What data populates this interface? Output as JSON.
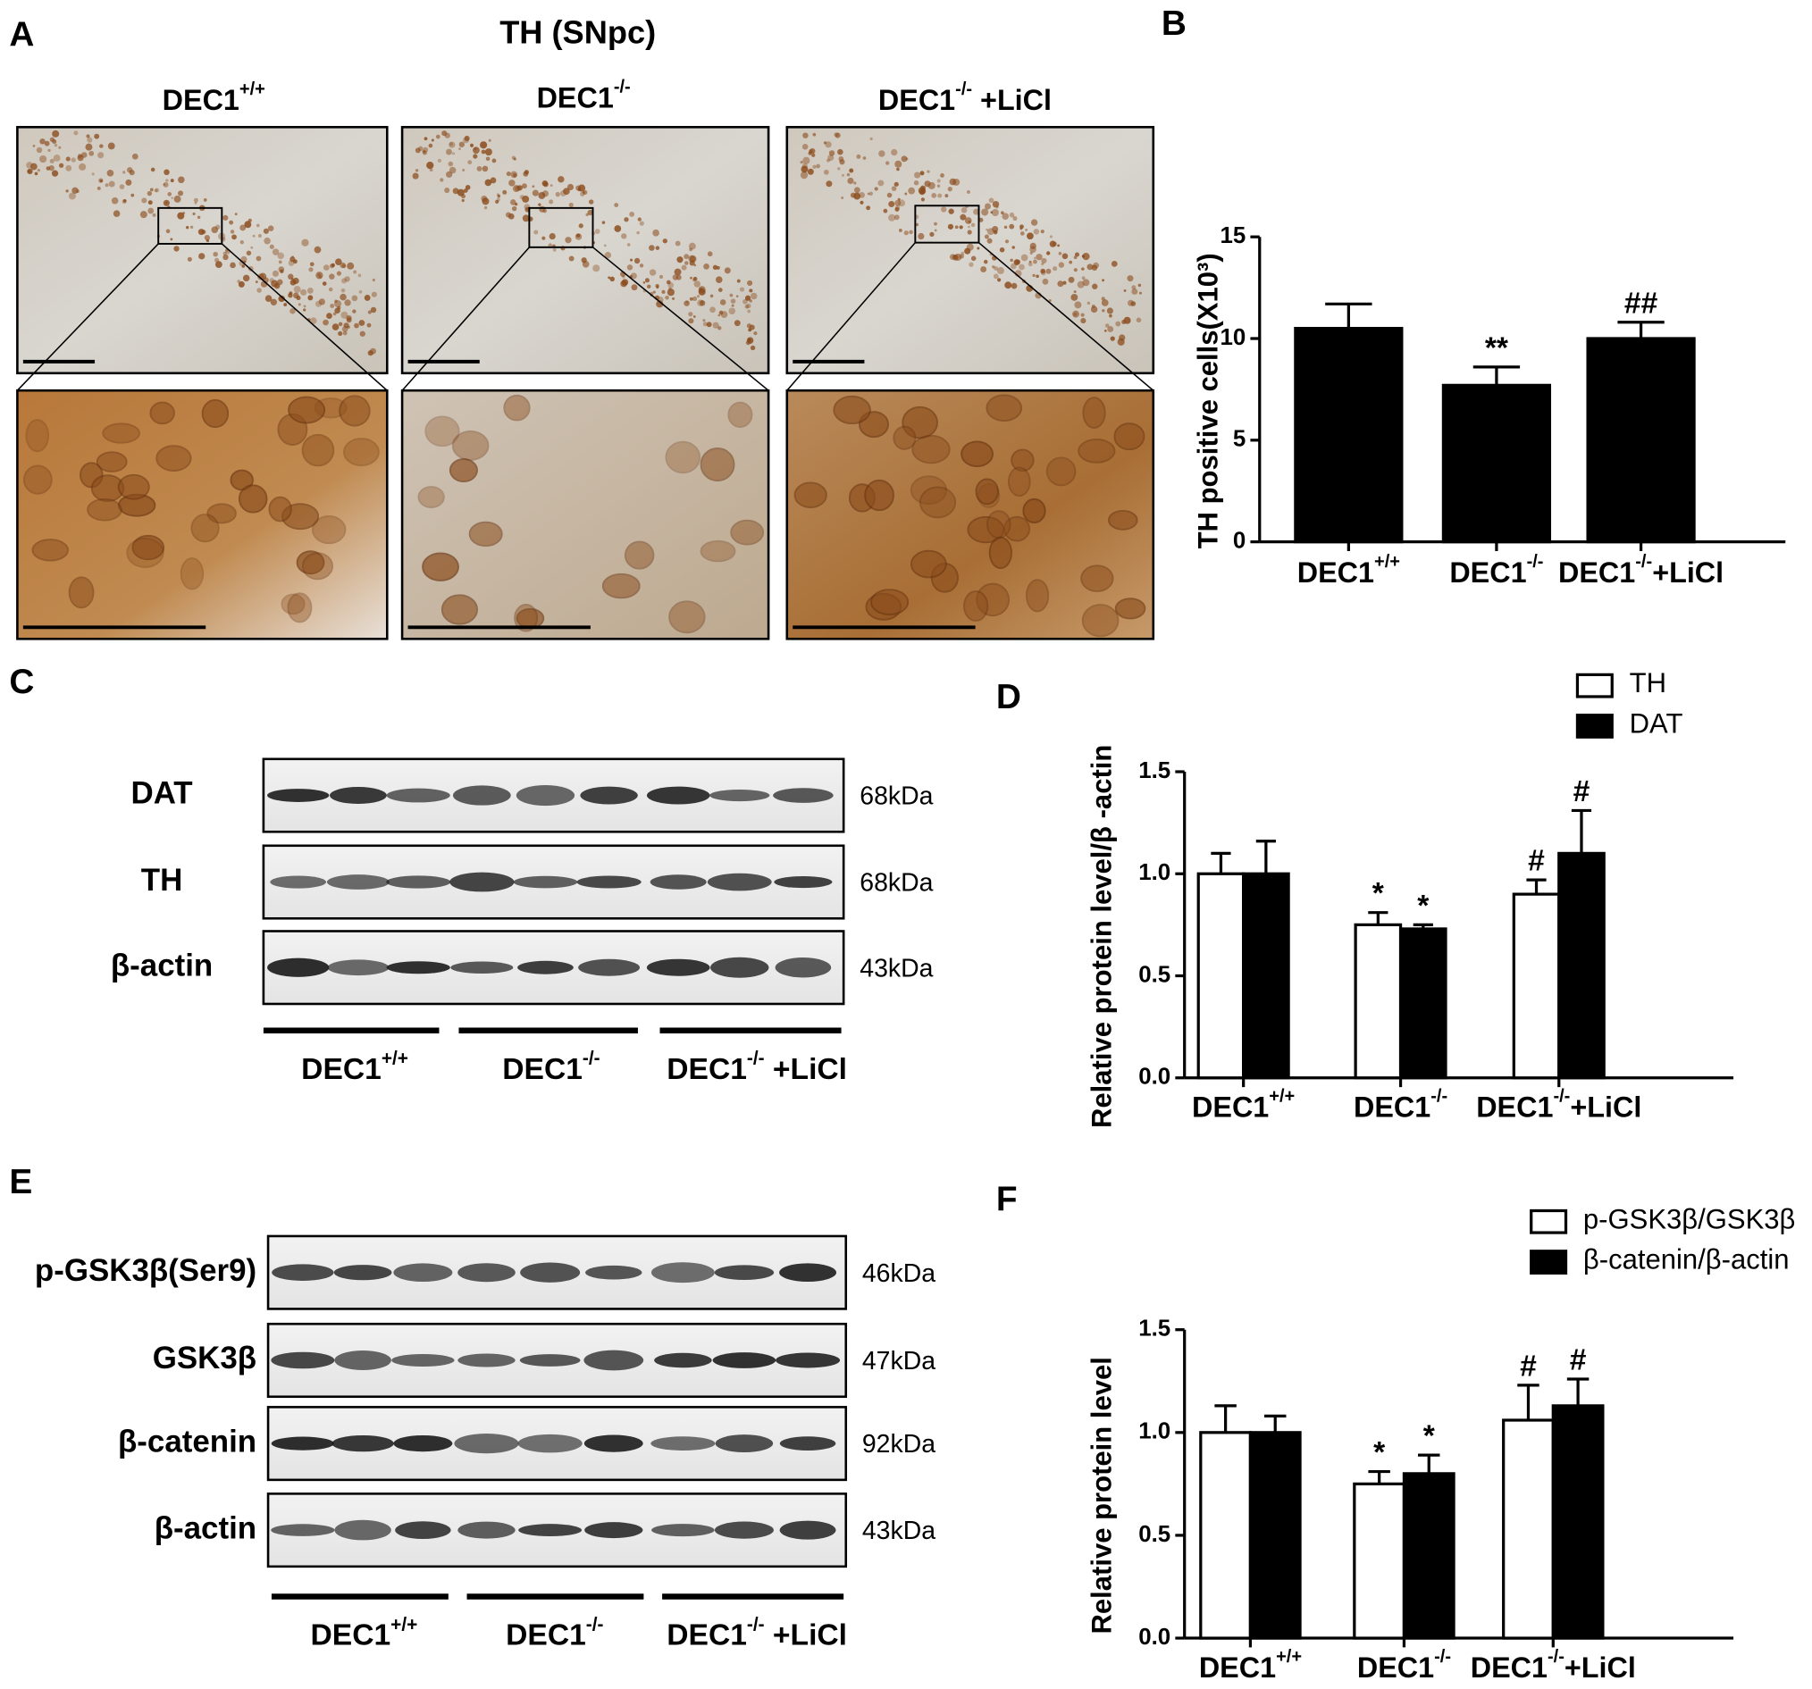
{
  "panel_a": {
    "letter": "A",
    "title": "TH (SNpc)",
    "groups": [
      "DEC1+/+",
      "DEC1-/-",
      "DEC1-/- +LiCl"
    ]
  },
  "panel_c": {
    "letter": "C",
    "rows": [
      {
        "label": "DAT",
        "size": "68kDa"
      },
      {
        "label": "TH",
        "size": "68kDa"
      },
      {
        "label": "β-actin",
        "size": "43kDa"
      }
    ],
    "groups": [
      "DEC1+/+",
      "DEC1-/-",
      "DEC1-/- +LiCl"
    ]
  },
  "panel_e": {
    "letter": "E",
    "rows": [
      {
        "label": "p-GSK3β(Ser9)",
        "size": "46kDa"
      },
      {
        "label": "GSK3β",
        "size": "47kDa"
      },
      {
        "label": "β-catenin",
        "size": "92kDa"
      },
      {
        "label": "β-actin",
        "size": "43kDa"
      }
    ],
    "groups": [
      "DEC1+/+",
      "DEC1-/-",
      "DEC1-/- +LiCl"
    ]
  },
  "chart_data": [
    {
      "type": "bar",
      "panel": "B",
      "ylabel": "TH positive cells(X10³)",
      "categories": [
        "DEC1+/+",
        "DEC1-/-",
        "DEC1-/-+LiCl"
      ],
      "values": [
        10.5,
        7.7,
        10.0
      ],
      "errors": [
        1.2,
        0.9,
        0.8
      ],
      "annotations": [
        null,
        "**",
        "##"
      ],
      "color": "#000000",
      "ylim": [
        0,
        15
      ],
      "yticks": [
        0,
        5,
        10,
        15
      ]
    },
    {
      "type": "bar",
      "panel": "D",
      "ylabel": "Relative protein level/β -actin",
      "categories": [
        "DEC1+/+",
        "DEC1-/-",
        "DEC1-/-+LiCl"
      ],
      "series": [
        {
          "name": "TH",
          "color": "#ffffff",
          "values": [
            1.0,
            0.75,
            0.9
          ],
          "errors": [
            0.1,
            0.06,
            0.07
          ],
          "annotations": [
            null,
            "*",
            "#"
          ]
        },
        {
          "name": "DAT",
          "color": "#000000",
          "values": [
            1.0,
            0.73,
            1.1
          ],
          "errors": [
            0.16,
            0.02,
            0.21
          ],
          "annotations": [
            null,
            "*",
            "#"
          ]
        }
      ],
      "ylim": [
        0,
        1.5
      ],
      "yticks": [
        {
          "value": 0,
          "label": "0.0"
        },
        0.5,
        {
          "value": 1,
          "label": "1.0"
        },
        1.5
      ],
      "legend": "top-right"
    },
    {
      "type": "bar",
      "panel": "F",
      "ylabel": "Relative protein level",
      "categories": [
        "DEC1+/+",
        "DEC1-/-",
        "DEC1-/-+LiCl"
      ],
      "series": [
        {
          "name": "p-GSK3β/GSK3β",
          "color": "#ffffff",
          "values": [
            1.0,
            0.75,
            1.06
          ],
          "errors": [
            0.13,
            0.06,
            0.17
          ],
          "annotations": [
            null,
            "*",
            "#"
          ]
        },
        {
          "name": "β-catenin/β-actin",
          "color": "#000000",
          "values": [
            1.0,
            0.8,
            1.13
          ],
          "errors": [
            0.08,
            0.09,
            0.13
          ],
          "annotations": [
            null,
            "*",
            "#"
          ]
        }
      ],
      "ylim": [
        0,
        1.5
      ],
      "yticks": [
        {
          "value": 0,
          "label": "0.0"
        },
        0.5,
        {
          "value": 1,
          "label": "1.0"
        },
        1.5
      ],
      "legend": "top-right"
    }
  ]
}
